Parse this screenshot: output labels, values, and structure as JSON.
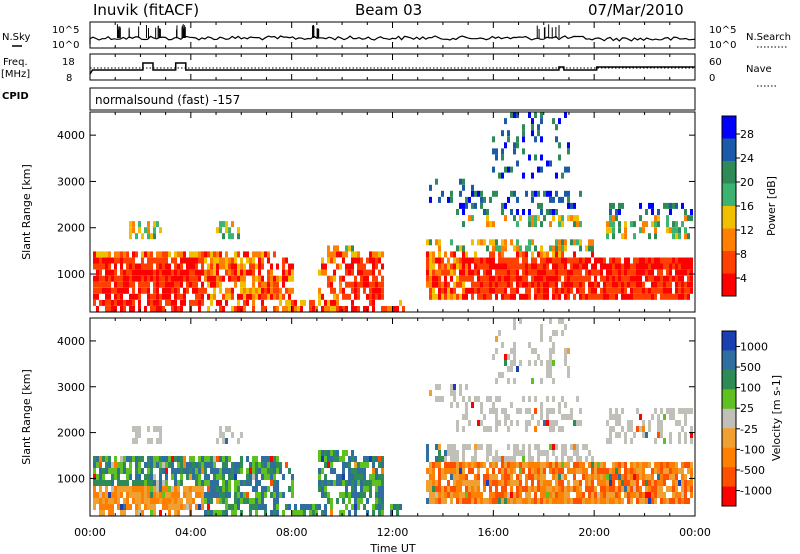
{
  "header": {
    "station": "Inuvik (fitACF)",
    "beam": "Beam 03",
    "date": "07/Mar/2010"
  },
  "panels": {
    "nsky_label": "N.Sky",
    "nsearch_label": "N.Search",
    "freq_label_1": "Freq.",
    "freq_label_2": "[MHz]",
    "nave_label": "Nave",
    "cpid_label": "CPID",
    "cpid_text": "normalsound (fast) -157",
    "noise_ticks": [
      "10^5",
      "10^0"
    ],
    "noise_right_ticks": [
      "10^5",
      "10^0"
    ],
    "freq_ticks": [
      "18",
      "8"
    ],
    "nave_ticks": [
      "60",
      "0"
    ]
  },
  "colors": {
    "power_scale": [
      "#0000ff",
      "#1a5aa8",
      "#2e8b57",
      "#3cb371",
      "#f0c000",
      "#ff8000",
      "#ff4000",
      "#ff0000"
    ],
    "velocity_scale": [
      "#1a3fb0",
      "#2e6fa0",
      "#2e8b57",
      "#60c020",
      "#c0c0b8",
      "#f0a030",
      "#ff8000",
      "#ff5000",
      "#ff0000"
    ]
  },
  "chart_data": [
    {
      "type": "heatmap",
      "title": "",
      "xlabel": "Time UT",
      "ylabel": "Slant Range [km]",
      "x_ticks": [
        "00:00",
        "04:00",
        "08:00",
        "12:00",
        "16:00",
        "20:00",
        "00:00"
      ],
      "y_ticks": [
        "1000",
        "2000",
        "3000",
        "4000"
      ],
      "xlim": [
        0,
        24
      ],
      "ylim": [
        180,
        4500
      ],
      "colorbar_label": "Power [dB]",
      "colorbar_ticks": [
        "28",
        "24",
        "20",
        "16",
        "12",
        "8",
        "4"
      ],
      "colorbar_range": [
        0,
        30
      ]
    },
    {
      "type": "heatmap",
      "title": "",
      "xlabel": "Time UT",
      "ylabel": "Slant Range [km]",
      "x_ticks": [
        "00:00",
        "04:00",
        "08:00",
        "12:00",
        "16:00",
        "20:00",
        "00:00"
      ],
      "y_ticks": [
        "1000",
        "2000",
        "3000",
        "4000"
      ],
      "xlim": [
        0,
        24
      ],
      "ylim": [
        180,
        4500
      ],
      "colorbar_label": "Velocity [m s-1]",
      "colorbar_ticks": [
        "1000",
        "500",
        "100",
        "25",
        "-25",
        "-100",
        "-500",
        "-1000"
      ]
    }
  ]
}
